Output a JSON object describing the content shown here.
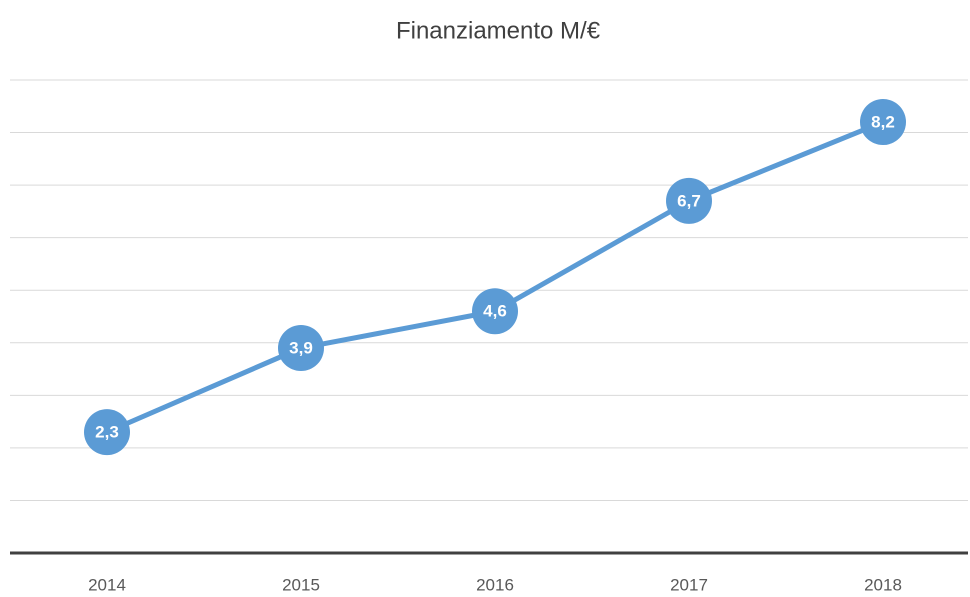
{
  "chart_data": {
    "type": "line",
    "title": "Finanziamento M/€",
    "categories": [
      "2014",
      "2015",
      "2016",
      "2017",
      "2018"
    ],
    "series": [
      {
        "name": "Finanziamento",
        "color": "#5b9bd5",
        "values": [
          2.3,
          3.9,
          4.6,
          6.7,
          8.2
        ],
        "value_labels": [
          "2,3",
          "3,9",
          "4,6",
          "6,7",
          "8,2"
        ]
      }
    ],
    "ylim": [
      0,
      9
    ],
    "yticks": [
      0,
      1,
      2,
      3,
      4,
      5,
      6,
      7,
      8,
      9
    ],
    "grid": true
  }
}
